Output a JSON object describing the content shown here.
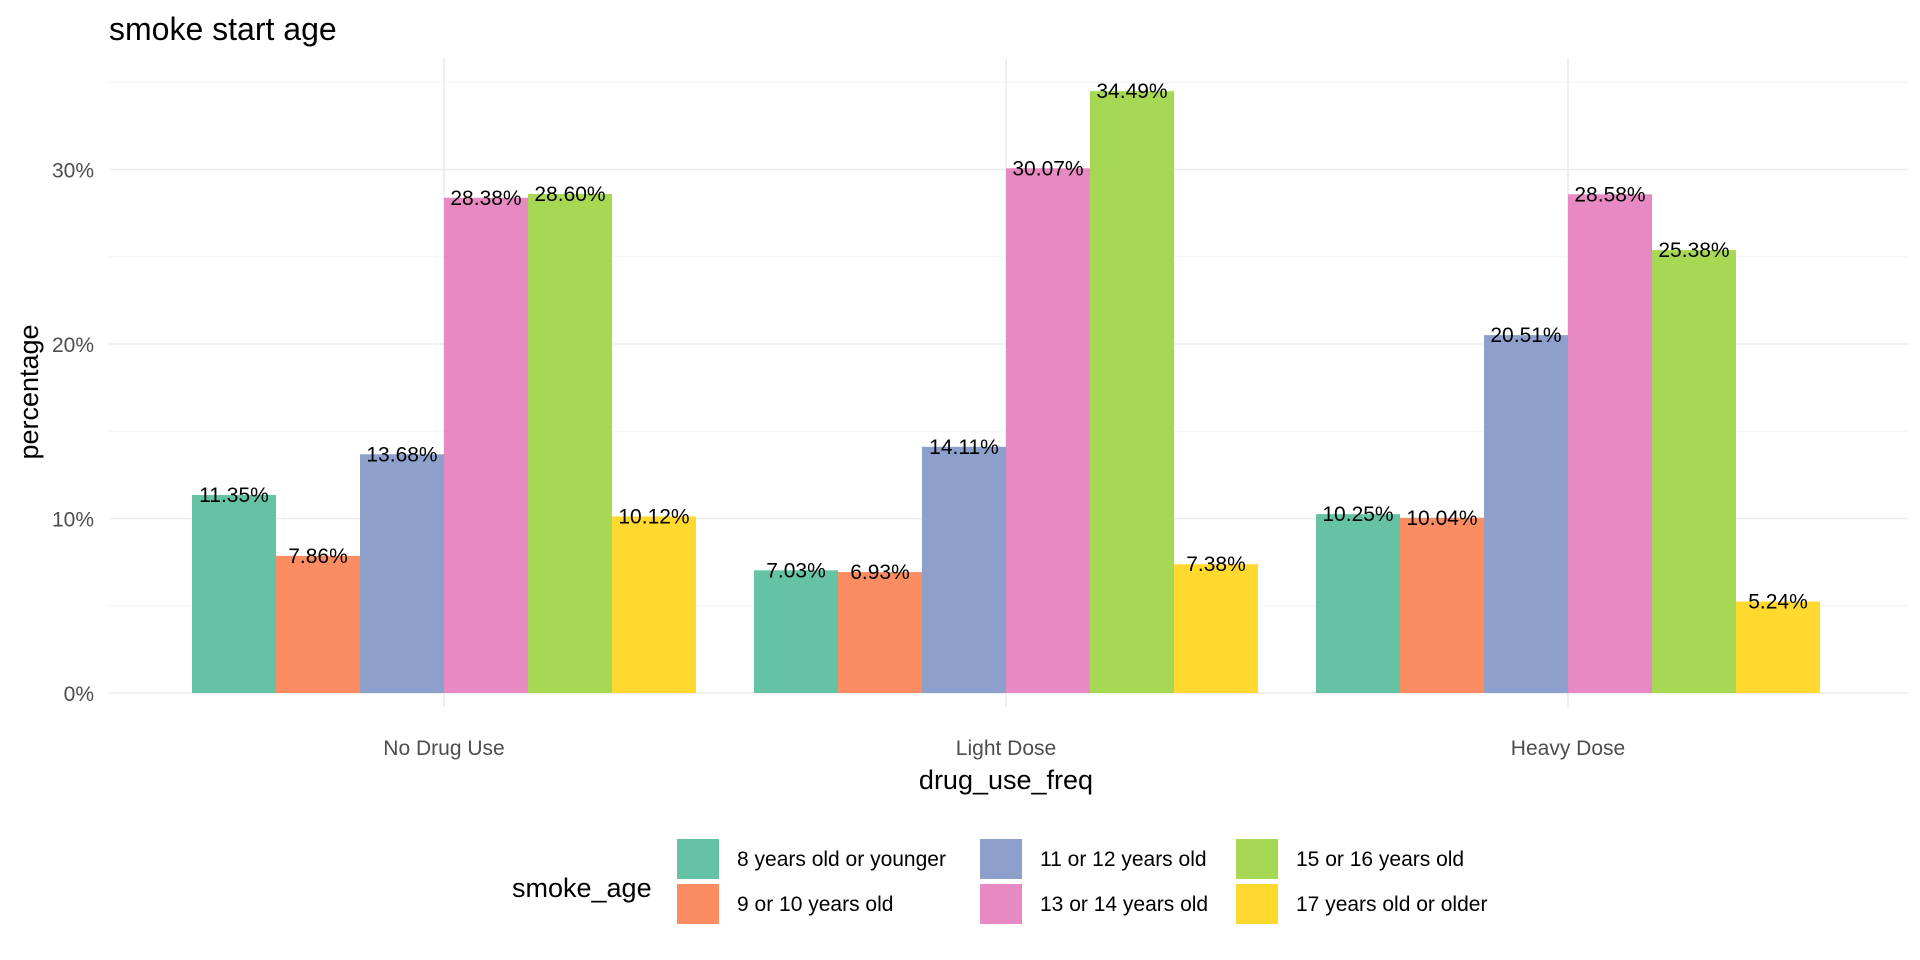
{
  "chart_data": {
    "type": "bar",
    "title": "smoke start age",
    "xlabel": "drug_use_freq",
    "ylabel": "percentage",
    "categories": [
      "No Drug Use",
      "Light Dose",
      "Heavy Dose"
    ],
    "ylim": [
      0,
      36
    ],
    "yticks": [
      0,
      10,
      20,
      30
    ],
    "ytick_labels": [
      "0%",
      "10%",
      "20%",
      "30%"
    ],
    "grid": true,
    "legend": {
      "title": "smoke_age",
      "position": "bottom"
    },
    "series": [
      {
        "name": "8 years old or younger",
        "color": "#66c2a5",
        "values": [
          11.35,
          7.03,
          10.25
        ],
        "labels": [
          "11.35%",
          "7.03%",
          "10.25%"
        ]
      },
      {
        "name": "9 or 10 years old",
        "color": "#fc8d62",
        "values": [
          7.86,
          6.93,
          10.04
        ],
        "labels": [
          "7.86%",
          "6.93%",
          "10.04%"
        ]
      },
      {
        "name": "11 or 12 years old",
        "color": "#8da0cb",
        "values": [
          13.68,
          14.11,
          20.51
        ],
        "labels": [
          "13.68%",
          "14.11%",
          "20.51%"
        ]
      },
      {
        "name": "13 or 14 years old",
        "color": "#e78ac3",
        "values": [
          28.38,
          30.07,
          28.58
        ],
        "labels": [
          "28.38%",
          "30.07%",
          "28.58%"
        ]
      },
      {
        "name": "15 or 16 years old",
        "color": "#a6d854",
        "values": [
          28.6,
          34.49,
          25.38
        ],
        "labels": [
          "28.60%",
          "34.49%",
          "25.38%"
        ]
      },
      {
        "name": "17 years old or older",
        "color": "#ffd92f",
        "values": [
          10.12,
          7.38,
          5.24
        ],
        "labels": [
          "10.12%",
          "7.38%",
          "5.24%"
        ]
      }
    ]
  }
}
